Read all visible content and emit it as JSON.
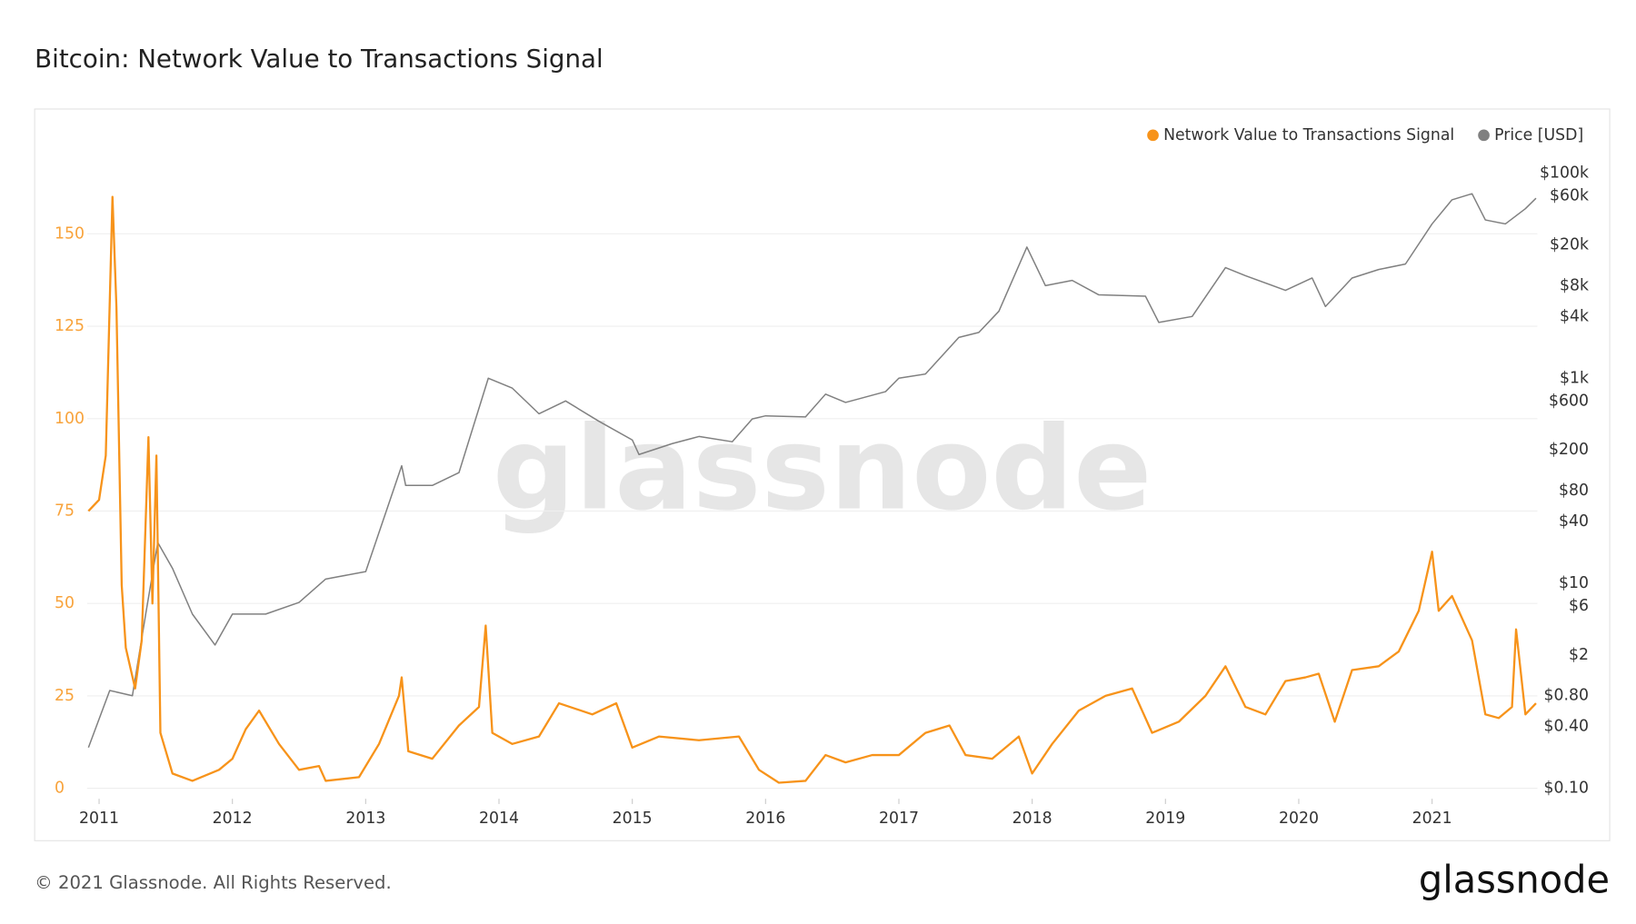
{
  "chart_data": {
    "type": "line",
    "title": "Bitcoin: Network Value to Transactions Signal",
    "watermark": "glassnode",
    "footer": "© 2021 Glassnode. All Rights Reserved.",
    "logo": "glassnode",
    "legend": "top-right",
    "grid": true,
    "xlim": [
      2010.91,
      2021.79
    ],
    "xticks": [
      2011,
      2012,
      2013,
      2014,
      2015,
      2016,
      2017,
      2018,
      2019,
      2020,
      2021
    ],
    "ylim": [
      0,
      172.7
    ],
    "yticks": [
      0,
      25,
      50,
      75,
      100,
      125,
      150
    ],
    "y2lim": [
      0.1,
      168700
    ],
    "y2scale": "log",
    "y2ticks": [
      {
        "value": 0.1,
        "label": "$0.10"
      },
      {
        "value": 0.4,
        "label": "$0.40"
      },
      {
        "value": 0.8,
        "label": "$0.80"
      },
      {
        "value": 2,
        "label": "$2"
      },
      {
        "value": 6,
        "label": "$6"
      },
      {
        "value": 10,
        "label": "$10"
      },
      {
        "value": 40,
        "label": "$40"
      },
      {
        "value": 80,
        "label": "$80"
      },
      {
        "value": 200,
        "label": "$200"
      },
      {
        "value": 600,
        "label": "$600"
      },
      {
        "value": 1000,
        "label": "$1k"
      },
      {
        "value": 4000,
        "label": "$4k"
      },
      {
        "value": 8000,
        "label": "$8k"
      },
      {
        "value": 20000,
        "label": "$20k"
      },
      {
        "value": 60000,
        "label": "$60k"
      },
      {
        "value": 100000,
        "label": "$100k"
      }
    ],
    "series": [
      {
        "name": "Network Value to Transactions Signal",
        "color": "#f7931a",
        "x": [
          2010.92,
          2011.0,
          2011.05,
          2011.1,
          2011.13,
          2011.17,
          2011.2,
          2011.27,
          2011.32,
          2011.37,
          2011.4,
          2011.43,
          2011.46,
          2011.55,
          2011.7,
          2011.9,
          2012.0,
          2012.1,
          2012.2,
          2012.35,
          2012.5,
          2012.65,
          2012.7,
          2012.95,
          2013.1,
          2013.25,
          2013.27,
          2013.32,
          2013.5,
          2013.7,
          2013.85,
          2013.9,
          2013.95,
          2014.1,
          2014.3,
          2014.45,
          2014.7,
          2014.88,
          2015.0,
          2015.2,
          2015.5,
          2015.8,
          2015.95,
          2016.1,
          2016.3,
          2016.45,
          2016.6,
          2016.8,
          2017.0,
          2017.2,
          2017.38,
          2017.5,
          2017.7,
          2017.9,
          2018.0,
          2018.15,
          2018.35,
          2018.55,
          2018.75,
          2018.9,
          2019.1,
          2019.3,
          2019.45,
          2019.6,
          2019.75,
          2019.9,
          2020.05,
          2020.15,
          2020.27,
          2020.4,
          2020.6,
          2020.75,
          2020.9,
          2021.0,
          2021.05,
          2021.15,
          2021.3,
          2021.4,
          2021.5,
          2021.6,
          2021.63,
          2021.7,
          2021.78
        ],
        "values": [
          75,
          78,
          90,
          160,
          130,
          55,
          38,
          27,
          40,
          95,
          50,
          90,
          15,
          4,
          2,
          5,
          8,
          16,
          21,
          12,
          5,
          6,
          2,
          3,
          12,
          25,
          30,
          10,
          8,
          17,
          22,
          44,
          15,
          12,
          14,
          23,
          20,
          23,
          11,
          14,
          13,
          14,
          5,
          1.5,
          2,
          9,
          7,
          9,
          9,
          15,
          17,
          9,
          8,
          14,
          4,
          12,
          21,
          25,
          27,
          15,
          18,
          25,
          33,
          22,
          20,
          29,
          30,
          31,
          18,
          32,
          33,
          37,
          48,
          64,
          48,
          52,
          40,
          20,
          19,
          22,
          43,
          20,
          23
        ]
      },
      {
        "name": "Price [USD]",
        "color": "#808080",
        "axis": "y2",
        "x": [
          2010.92,
          2011.08,
          2011.25,
          2011.35,
          2011.44,
          2011.55,
          2011.7,
          2011.87,
          2012.0,
          2012.25,
          2012.5,
          2012.7,
          2013.0,
          2013.27,
          2013.3,
          2013.5,
          2013.7,
          2013.92,
          2014.1,
          2014.3,
          2014.5,
          2014.75,
          2015.0,
          2015.05,
          2015.3,
          2015.5,
          2015.75,
          2015.9,
          2016.0,
          2016.3,
          2016.45,
          2016.6,
          2016.9,
          2017.0,
          2017.2,
          2017.45,
          2017.6,
          2017.75,
          2017.96,
          2018.1,
          2018.3,
          2018.5,
          2018.85,
          2018.95,
          2019.2,
          2019.45,
          2019.6,
          2019.9,
          2020.1,
          2020.2,
          2020.4,
          2020.6,
          2020.8,
          2021.0,
          2021.15,
          2021.3,
          2021.4,
          2021.55,
          2021.7,
          2021.78
        ],
        "values": [
          0.25,
          0.9,
          0.8,
          5,
          25,
          14,
          5,
          2.5,
          5,
          5,
          6.5,
          11,
          13,
          140,
          90,
          90,
          120,
          1000,
          800,
          450,
          600,
          380,
          250,
          180,
          230,
          270,
          240,
          400,
          430,
          420,
          700,
          580,
          740,
          1000,
          1100,
          2500,
          2800,
          4500,
          19000,
          8000,
          9000,
          6500,
          6300,
          3500,
          4000,
          12000,
          10000,
          7200,
          9500,
          5000,
          9500,
          11500,
          13000,
          32000,
          55000,
          63000,
          35000,
          32000,
          45000,
          57000
        ]
      }
    ]
  }
}
